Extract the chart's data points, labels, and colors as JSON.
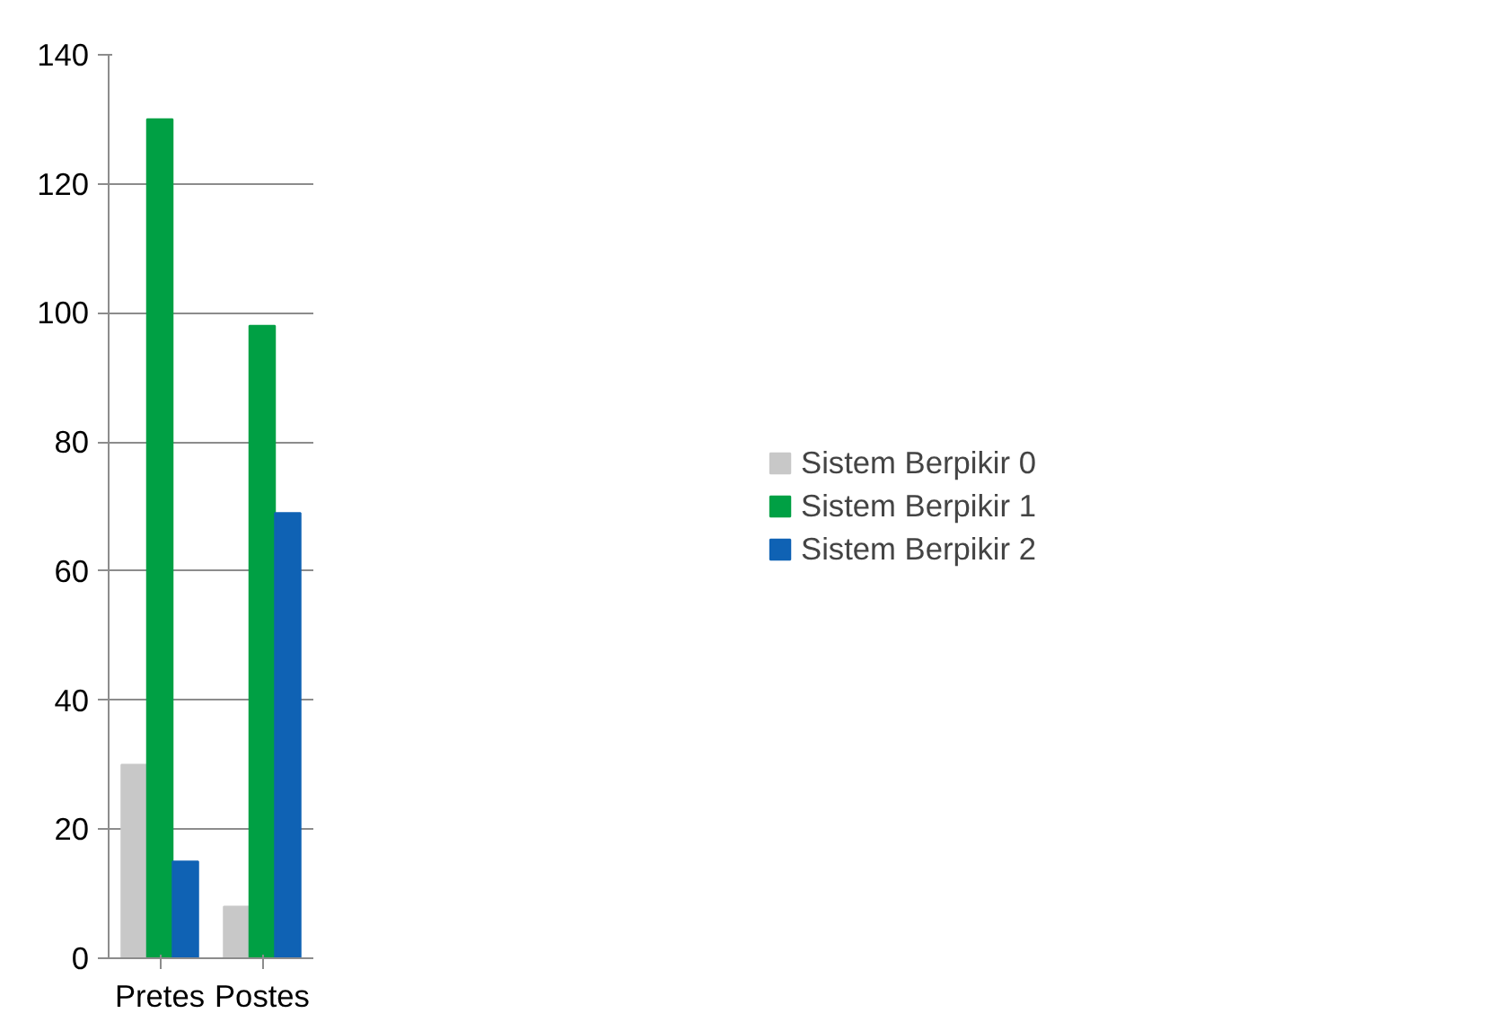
{
  "chart_data": {
    "type": "bar",
    "categories": [
      "Pretes",
      "Postes"
    ],
    "series": [
      {
        "name": "Sistem Berpikir 0",
        "color": "#c8c8c8",
        "values": [
          30,
          8
        ]
      },
      {
        "name": "Sistem Berpikir 1",
        "color": "#00a044",
        "values": [
          130,
          98
        ]
      },
      {
        "name": "Sistem Berpikir 2",
        "color": "#0f62b4",
        "values": [
          15,
          69
        ]
      }
    ],
    "ylim": [
      0,
      140
    ],
    "yticks": [
      0,
      20,
      40,
      60,
      80,
      100,
      120,
      140
    ],
    "grid": "y",
    "legend": "right"
  }
}
